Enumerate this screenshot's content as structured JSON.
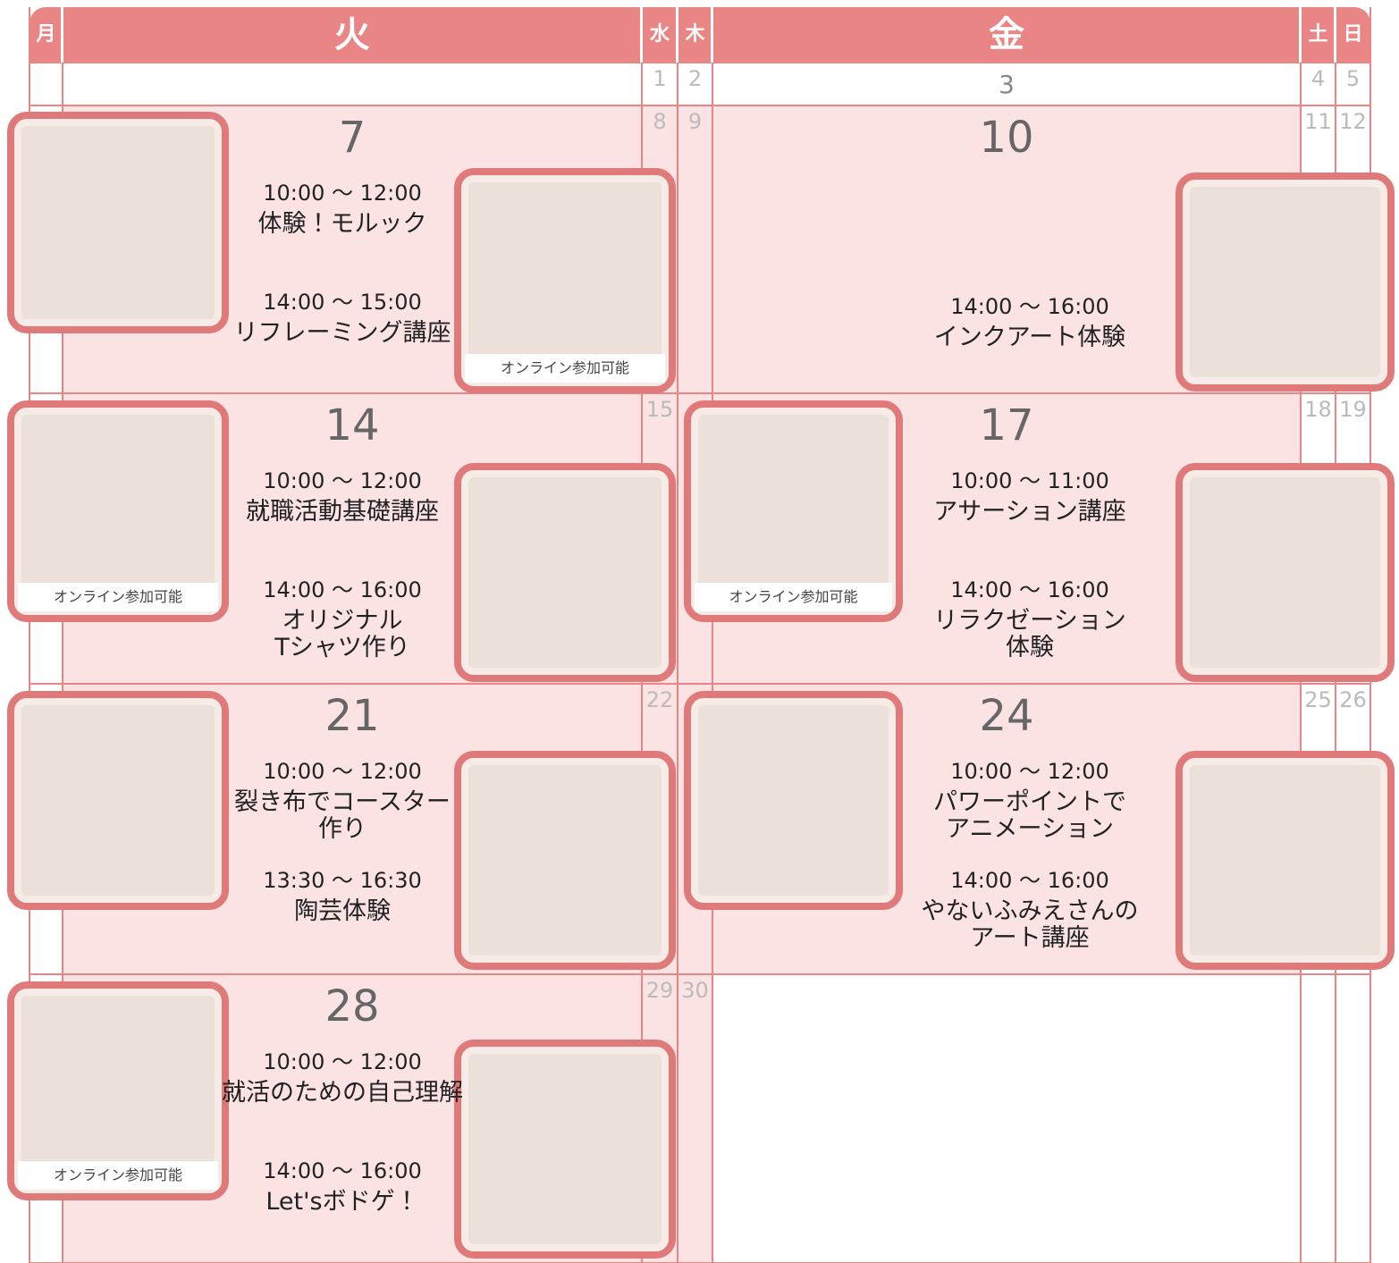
{
  "days": [
    "月",
    "火",
    "水",
    "木",
    "金",
    "土",
    "日"
  ],
  "weeks": [
    {
      "dates": [
        null,
        null,
        1,
        2,
        3,
        4,
        5
      ]
    },
    {
      "dates": [
        null,
        7,
        8,
        9,
        10,
        11,
        12
      ],
      "tue": {
        "sessions": [
          {
            "time": "10:00 〜 12:00",
            "title": [
              "体験！モルック"
            ]
          },
          {
            "time": "14:00 〜 15:00",
            "title": [
              "リフレーミング講座"
            ]
          }
        ],
        "captions": [
          "オンライン参加可能"
        ]
      },
      "fri": {
        "sessions": [
          {
            "time": "14:00 〜 16:00",
            "title": [
              "インクアート体験"
            ]
          }
        ]
      }
    },
    {
      "dates": [
        null,
        14,
        15,
        null,
        17,
        18,
        19
      ],
      "tue": {
        "sessions": [
          {
            "time": "10:00 〜 12:00",
            "title": [
              "就職活動基礎講座"
            ]
          },
          {
            "time": "14:00 〜 16:00",
            "title": [
              "オリジナル",
              "Tシャツ作り"
            ]
          }
        ],
        "captions": [
          "オンライン参加可能"
        ]
      },
      "fri": {
        "sessions": [
          {
            "time": "10:00 〜 11:00",
            "title": [
              "アサーション講座"
            ]
          },
          {
            "time": "14:00 〜 16:00",
            "title": [
              "リラクゼーション",
              "体験"
            ]
          }
        ],
        "captions": [
          "オンライン参加可能"
        ]
      }
    },
    {
      "dates": [
        null,
        21,
        22,
        null,
        24,
        25,
        26
      ],
      "tue": {
        "sessions": [
          {
            "time": "10:00 〜 12:00",
            "title": [
              "裂き布でコースター",
              "作り"
            ]
          },
          {
            "time": "13:30 〜 16:30",
            "title": [
              "陶芸体験"
            ]
          }
        ]
      },
      "fri": {
        "sessions": [
          {
            "time": "10:00 〜 12:00",
            "title": [
              "パワーポイントで",
              "アニメーション"
            ]
          },
          {
            "time": "14:00 〜 16:00",
            "title": [
              "やないふみえさんの",
              "アート講座"
            ]
          }
        ]
      }
    },
    {
      "dates": [
        null,
        28,
        29,
        30,
        null,
        null,
        null
      ],
      "tue": {
        "sessions": [
          {
            "time": "10:00 〜 12:00",
            "title": [
              "就活のための自己理解"
            ]
          },
          {
            "time": "14:00 〜 16:00",
            "title": [
              "Let'sボドゲ！"
            ]
          }
        ],
        "captions": [
          "オンライン参加可能"
        ]
      }
    }
  ]
}
